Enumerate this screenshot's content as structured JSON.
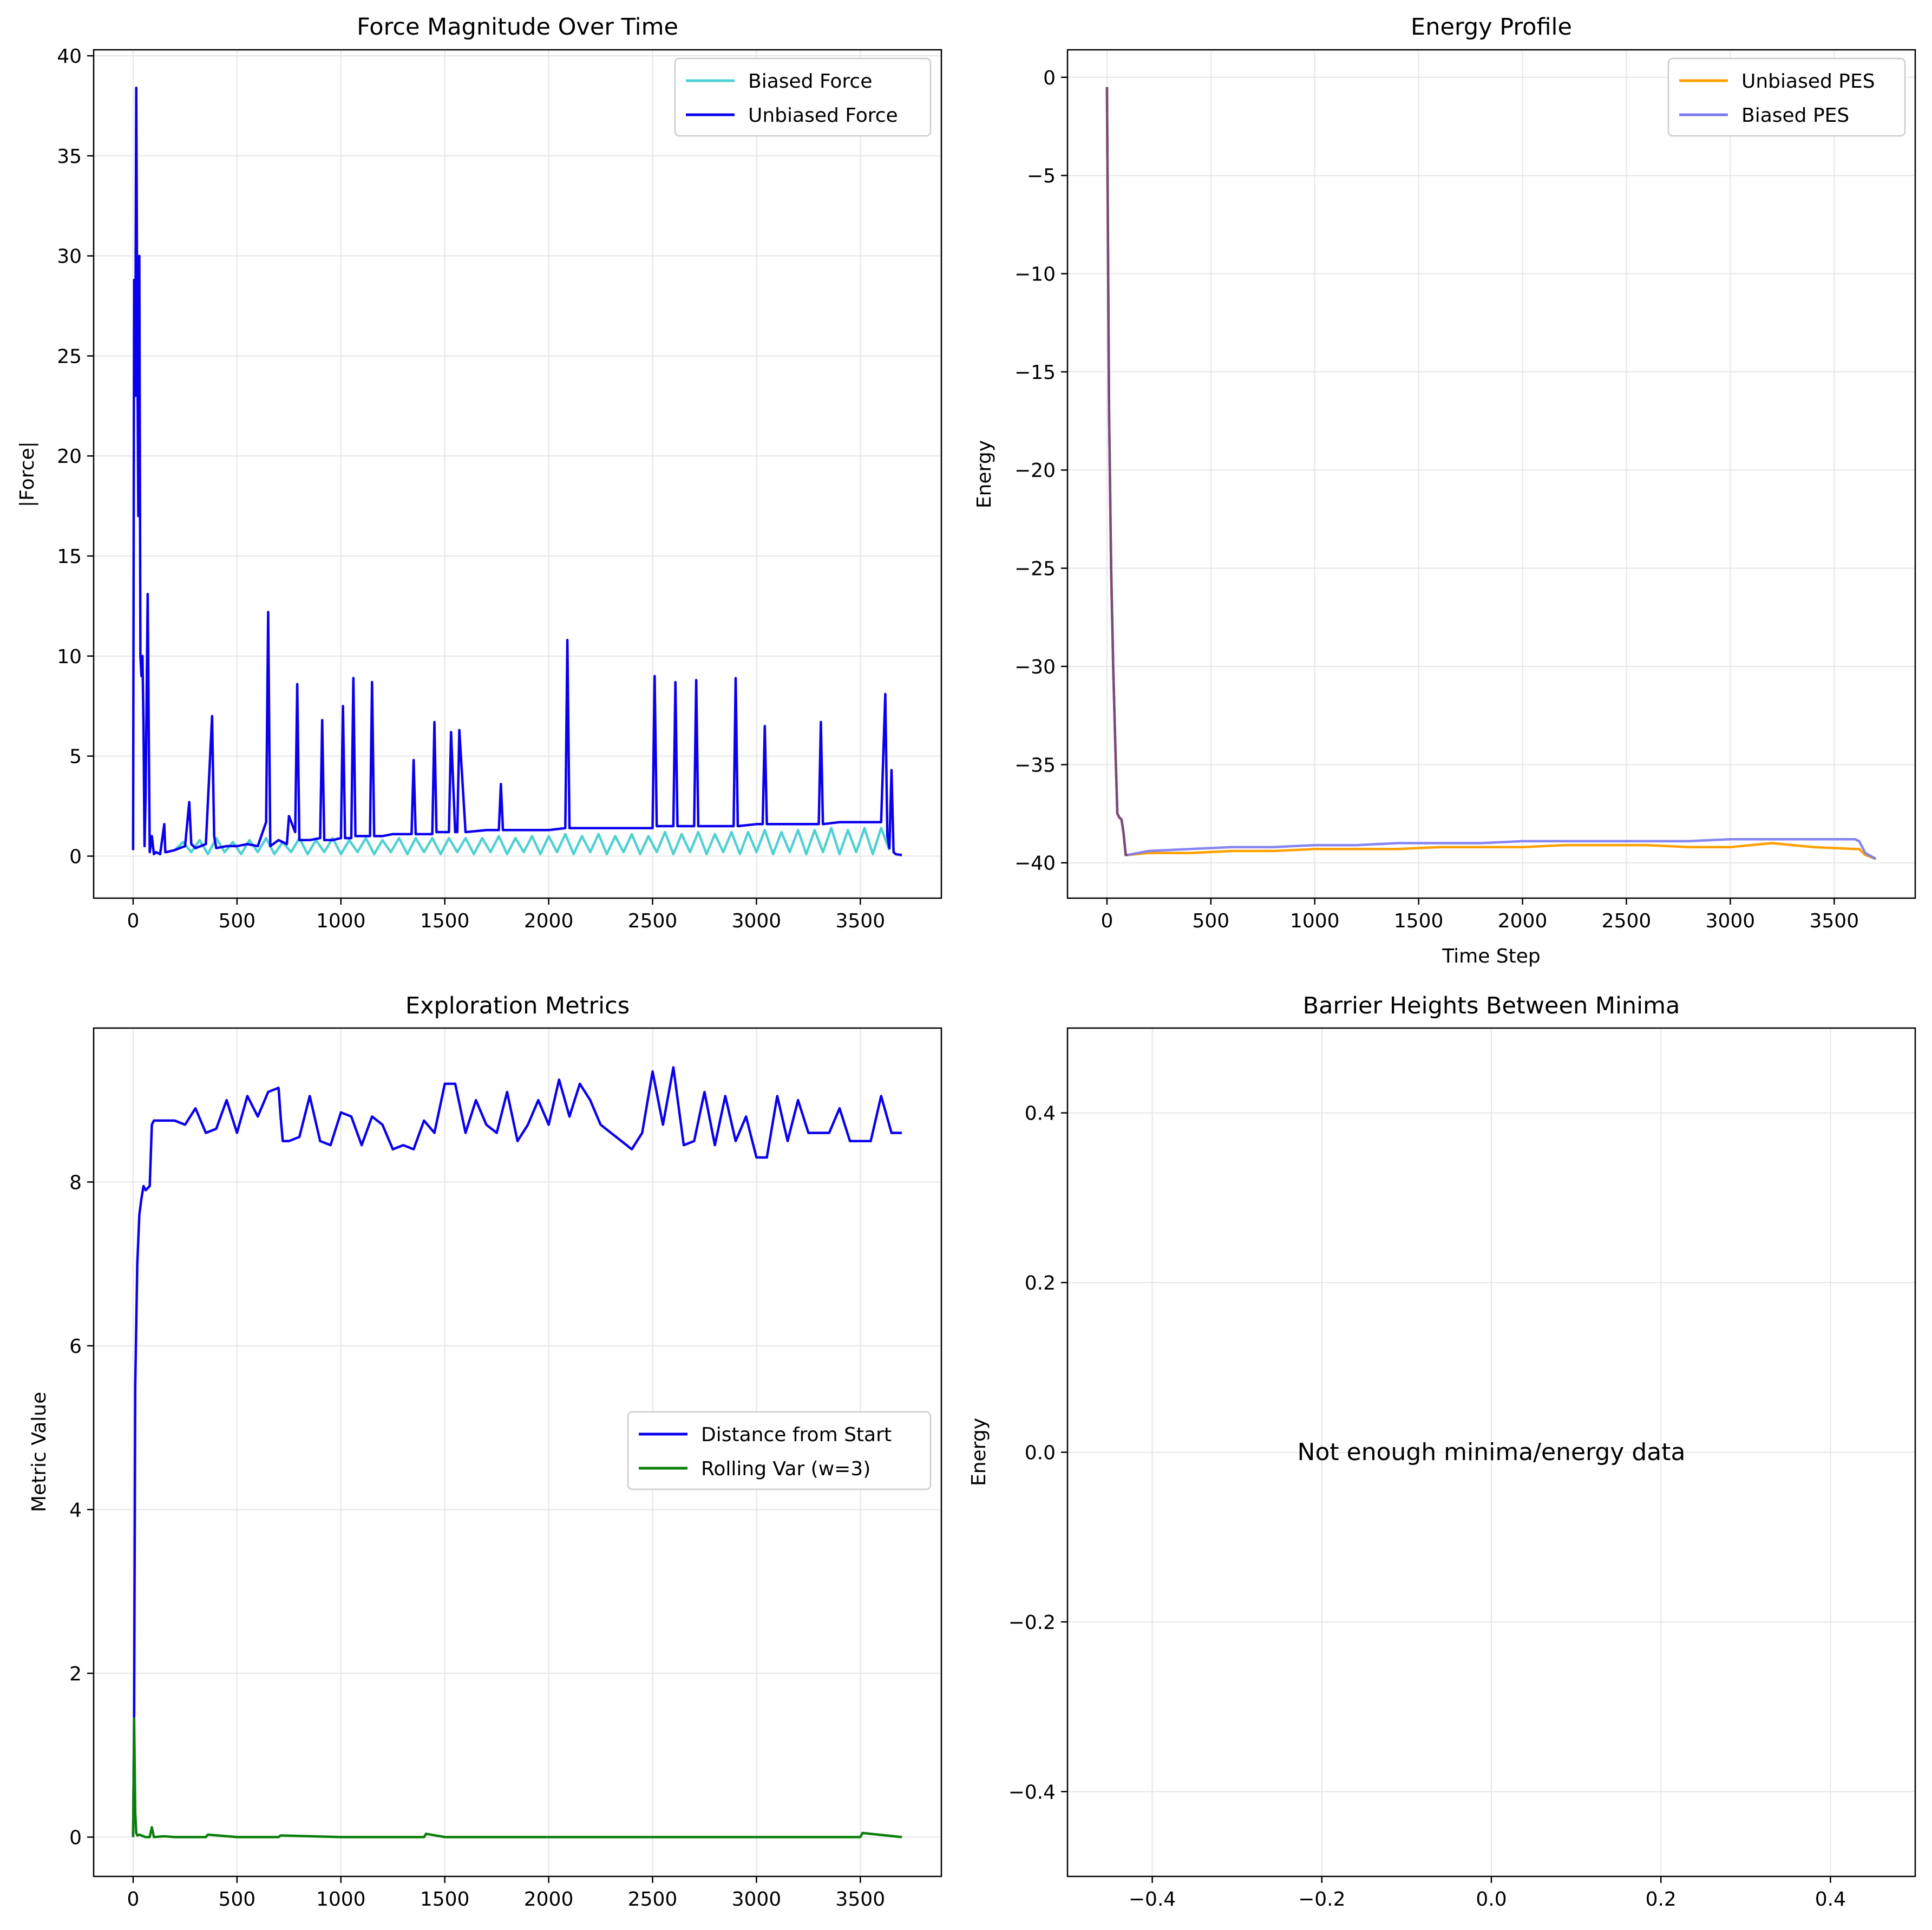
{
  "colors": {
    "biased_force": "#4fd0d3",
    "unbiased_force": "#0a00ee",
    "unbiased_pes": "#ffa000",
    "biased_pes": "#7a78f2",
    "pes_overlap": "#7b4a7a",
    "distance_from_start": "#0a00ee",
    "rolling_var": "#0a7f0a",
    "grid": "#e6e6e6"
  },
  "chart_data": [
    {
      "type": "line",
      "title": "Force Magnitude Over Time",
      "xlabel": "",
      "ylabel": "|Force|",
      "xlim": [
        -190,
        3890
      ],
      "ylim": [
        -2.1,
        40.3
      ],
      "xticks": [
        0,
        500,
        1000,
        1500,
        2000,
        2500,
        3000,
        3500
      ],
      "yticks": [
        0,
        5,
        10,
        15,
        20,
        25,
        30,
        35,
        40
      ],
      "grid": true,
      "legend_position": "top-right",
      "series": [
        {
          "name": "Biased Force",
          "color_key": "biased_force",
          "x": [
            200,
            240,
            280,
            320,
            360,
            400,
            440,
            480,
            520,
            560,
            600,
            640,
            680,
            720,
            760,
            800,
            840,
            880,
            920,
            960,
            1000,
            1040,
            1080,
            1120,
            1160,
            1200,
            1240,
            1280,
            1320,
            1360,
            1400,
            1440,
            1480,
            1520,
            1560,
            1600,
            1640,
            1680,
            1720,
            1760,
            1800,
            1840,
            1880,
            1920,
            1960,
            2000,
            2040,
            2080,
            2120,
            2160,
            2200,
            2240,
            2280,
            2320,
            2360,
            2400,
            2440,
            2480,
            2520,
            2560,
            2600,
            2640,
            2680,
            2720,
            2760,
            2800,
            2840,
            2880,
            2920,
            2960,
            3000,
            3040,
            3080,
            3120,
            3160,
            3200,
            3240,
            3280,
            3320,
            3360,
            3400,
            3440,
            3480,
            3520,
            3560,
            3600,
            3640
          ],
          "y": [
            0.3,
            0.7,
            0.2,
            0.8,
            0.1,
            0.9,
            0.2,
            0.7,
            0.1,
            0.8,
            0.2,
            0.9,
            0.1,
            0.7,
            0.2,
            0.9,
            0.1,
            0.8,
            0.2,
            0.9,
            0.1,
            0.8,
            0.2,
            0.9,
            0.1,
            0.8,
            0.2,
            0.9,
            0.1,
            0.9,
            0.2,
            0.9,
            0.1,
            0.9,
            0.2,
            0.9,
            0.1,
            0.9,
            0.2,
            1.0,
            0.1,
            0.9,
            0.2,
            1.0,
            0.1,
            1.0,
            0.2,
            1.1,
            0.1,
            1.0,
            0.2,
            1.1,
            0.1,
            1.0,
            0.2,
            1.1,
            0.1,
            1.0,
            0.2,
            1.2,
            0.1,
            1.1,
            0.2,
            1.2,
            0.1,
            1.1,
            0.2,
            1.2,
            0.1,
            1.2,
            0.2,
            1.3,
            0.1,
            1.2,
            0.2,
            1.3,
            0.1,
            1.3,
            0.2,
            1.4,
            0.1,
            1.3,
            0.2,
            1.4,
            0.1,
            1.4,
            0.3
          ]
        },
        {
          "name": "Unbiased Force",
          "color_key": "unbiased_force",
          "x": [
            0,
            5,
            10,
            15,
            20,
            25,
            30,
            35,
            40,
            45,
            50,
            55,
            60,
            70,
            80,
            90,
            100,
            110,
            130,
            150,
            155,
            160,
            200,
            250,
            270,
            280,
            300,
            350,
            380,
            390,
            400,
            450,
            500,
            550,
            600,
            640,
            650,
            660,
            700,
            740,
            750,
            780,
            790,
            800,
            850,
            900,
            910,
            920,
            960,
            1000,
            1010,
            1020,
            1050,
            1060,
            1070,
            1100,
            1140,
            1150,
            1160,
            1200,
            1250,
            1300,
            1340,
            1350,
            1360,
            1400,
            1440,
            1450,
            1460,
            1500,
            1520,
            1530,
            1550,
            1560,
            1570,
            1600,
            1700,
            1760,
            1770,
            1780,
            1800,
            1900,
            2000,
            2080,
            2090,
            2100,
            2200,
            2300,
            2400,
            2500,
            2510,
            2520,
            2560,
            2600,
            2610,
            2620,
            2700,
            2710,
            2720,
            2780,
            2800,
            2890,
            2900,
            2910,
            3000,
            3030,
            3040,
            3050,
            3100,
            3200,
            3300,
            3310,
            3320,
            3400,
            3500,
            3600,
            3620,
            3630,
            3640,
            3650,
            3660,
            3670,
            3700
          ],
          "y": [
            0.3,
            28.8,
            23.0,
            38.4,
            26.0,
            17.0,
            30.0,
            10.0,
            9.0,
            10.0,
            6.5,
            0.5,
            3.0,
            13.1,
            0.2,
            1.0,
            0.1,
            0.2,
            0.1,
            1.6,
            0.2,
            0.2,
            0.3,
            0.5,
            2.7,
            0.6,
            0.4,
            0.6,
            7.0,
            1.0,
            0.4,
            0.5,
            0.5,
            0.6,
            0.5,
            1.7,
            12.2,
            0.5,
            0.8,
            0.6,
            2.0,
            1.2,
            8.6,
            0.8,
            0.8,
            0.9,
            6.8,
            0.8,
            0.8,
            0.9,
            7.5,
            0.9,
            0.9,
            8.9,
            1.0,
            1.0,
            1.0,
            8.7,
            1.0,
            1.0,
            1.1,
            1.1,
            1.1,
            4.8,
            1.1,
            1.1,
            1.1,
            6.7,
            1.2,
            1.2,
            1.2,
            6.2,
            1.2,
            1.2,
            6.3,
            1.2,
            1.3,
            1.3,
            3.6,
            1.3,
            1.3,
            1.3,
            1.3,
            1.4,
            10.8,
            1.4,
            1.4,
            1.4,
            1.4,
            1.4,
            9.0,
            1.5,
            1.5,
            1.5,
            8.7,
            1.5,
            1.5,
            8.8,
            1.5,
            1.5,
            1.5,
            1.5,
            8.9,
            1.5,
            1.6,
            1.6,
            6.5,
            1.6,
            1.6,
            1.6,
            1.6,
            6.7,
            1.6,
            1.7,
            1.7,
            1.7,
            8.1,
            1.0,
            0.4,
            4.3,
            0.2,
            0.1,
            0.05
          ]
        }
      ]
    },
    {
      "type": "line",
      "title": "Energy Profile",
      "xlabel": "Time Step",
      "ylabel": "Energy",
      "xlim": [
        -190,
        3890
      ],
      "ylim": [
        -41.8,
        1.4
      ],
      "xticks": [
        0,
        500,
        1000,
        1500,
        2000,
        2500,
        3000,
        3500
      ],
      "yticks": [
        0,
        -5,
        -10,
        -15,
        -20,
        -25,
        -30,
        -35,
        -40
      ],
      "ytick_labels": [
        "0",
        "−5",
        "−10",
        "−15",
        "−20",
        "−25",
        "−30",
        "−35",
        "−40"
      ],
      "grid": true,
      "legend_position": "top-right",
      "series": [
        {
          "name": "Unbiased PES",
          "color_key": "unbiased_pes",
          "x": [
            0,
            10,
            20,
            30,
            40,
            50,
            60,
            70,
            80,
            90,
            100,
            200,
            400,
            600,
            800,
            1000,
            1200,
            1400,
            1600,
            1800,
            2000,
            2200,
            2400,
            2600,
            2800,
            3000,
            3200,
            3400,
            3600,
            3620,
            3650,
            3700
          ],
          "y": [
            -0.5,
            -17.0,
            -25.0,
            -30.0,
            -34.0,
            -37.5,
            -37.7,
            -37.8,
            -38.5,
            -39.6,
            -39.6,
            -39.5,
            -39.5,
            -39.4,
            -39.4,
            -39.3,
            -39.3,
            -39.3,
            -39.2,
            -39.2,
            -39.2,
            -39.1,
            -39.1,
            -39.1,
            -39.2,
            -39.2,
            -39.0,
            -39.2,
            -39.3,
            -39.3,
            -39.6,
            -39.8
          ]
        },
        {
          "name": "Biased PES",
          "color_key": "biased_pes",
          "x": [
            0,
            10,
            20,
            30,
            40,
            50,
            60,
            70,
            80,
            90,
            100,
            200,
            400,
            600,
            800,
            1000,
            1200,
            1400,
            1600,
            1800,
            2000,
            2200,
            2400,
            2600,
            2800,
            3000,
            3200,
            3400,
            3600,
            3620,
            3650,
            3700
          ],
          "y": [
            -0.5,
            -17.0,
            -25.0,
            -30.0,
            -34.0,
            -37.5,
            -37.7,
            -37.8,
            -38.5,
            -39.6,
            -39.6,
            -39.4,
            -39.3,
            -39.2,
            -39.2,
            -39.1,
            -39.1,
            -39.0,
            -39.0,
            -39.0,
            -38.9,
            -38.9,
            -38.9,
            -38.9,
            -38.9,
            -38.8,
            -38.8,
            -38.8,
            -38.8,
            -38.9,
            -39.5,
            -39.8
          ]
        }
      ]
    },
    {
      "type": "line",
      "title": "Exploration Metrics",
      "xlabel": "",
      "ylabel": "Metric Value",
      "xlim": [
        -190,
        3890
      ],
      "ylim": [
        -0.48,
        9.88
      ],
      "xticks": [
        0,
        500,
        1000,
        1500,
        2000,
        2500,
        3000,
        3500
      ],
      "yticks": [
        0,
        2,
        4,
        6,
        8
      ],
      "grid": true,
      "legend_position": "center-right",
      "series": [
        {
          "name": "Distance from Start",
          "color_key": "distance_from_start",
          "x": [
            0,
            5,
            10,
            20,
            30,
            40,
            50,
            60,
            80,
            90,
            100,
            200,
            250,
            300,
            350,
            400,
            450,
            500,
            550,
            600,
            650,
            700,
            710,
            720,
            750,
            800,
            850,
            900,
            950,
            1000,
            1050,
            1100,
            1150,
            1200,
            1250,
            1300,
            1350,
            1400,
            1450,
            1500,
            1550,
            1600,
            1650,
            1700,
            1750,
            1800,
            1850,
            1900,
            1950,
            2000,
            2050,
            2100,
            2150,
            2200,
            2250,
            2300,
            2350,
            2400,
            2450,
            2500,
            2550,
            2600,
            2650,
            2700,
            2750,
            2800,
            2850,
            2900,
            2950,
            3000,
            3050,
            3100,
            3150,
            3200,
            3250,
            3300,
            3350,
            3400,
            3450,
            3500,
            3550,
            3600,
            3650,
            3700
          ],
          "y": [
            0.0,
            1.5,
            5.5,
            7.0,
            7.6,
            7.8,
            7.95,
            7.9,
            7.95,
            8.7,
            8.75,
            8.75,
            8.7,
            8.9,
            8.6,
            8.65,
            9.0,
            8.6,
            9.05,
            8.8,
            9.1,
            9.15,
            8.8,
            8.5,
            8.5,
            8.55,
            9.05,
            8.5,
            8.45,
            8.85,
            8.8,
            8.45,
            8.8,
            8.7,
            8.4,
            8.45,
            8.4,
            8.75,
            8.6,
            9.2,
            9.2,
            8.6,
            9.0,
            8.7,
            8.6,
            9.1,
            8.5,
            8.7,
            9.0,
            8.7,
            9.25,
            8.8,
            9.2,
            9.0,
            8.7,
            8.6,
            8.5,
            8.4,
            8.6,
            9.35,
            8.7,
            9.4,
            8.45,
            8.5,
            9.1,
            8.45,
            9.05,
            8.5,
            8.8,
            8.3,
            8.3,
            9.05,
            8.5,
            9.0,
            8.6,
            8.6,
            8.6,
            8.9,
            8.5,
            8.5,
            8.5,
            9.05,
            8.6,
            8.6
          ]
        },
        {
          "name": "Rolling Var (w=3)",
          "color_key": "rolling_var",
          "x": [
            0,
            5,
            10,
            15,
            20,
            30,
            60,
            80,
            90,
            100,
            150,
            200,
            350,
            360,
            500,
            700,
            710,
            1000,
            1400,
            1410,
            1500,
            2000,
            2500,
            3000,
            3500,
            3510,
            3700
          ],
          "y": [
            0.0,
            1.45,
            0.3,
            0.05,
            0.02,
            0.03,
            0.0,
            0.0,
            0.12,
            0.0,
            0.01,
            0.0,
            0.0,
            0.03,
            0.0,
            0.0,
            0.02,
            0.0,
            0.0,
            0.04,
            0.0,
            0.0,
            0.0,
            0.0,
            0.0,
            0.05,
            0.0
          ]
        }
      ]
    },
    {
      "type": "line",
      "title": "Barrier Heights Between Minima",
      "xlabel": "",
      "ylabel": "Energy",
      "xlim": [
        -0.5,
        0.5
      ],
      "ylim": [
        -0.5,
        0.5
      ],
      "xticks": [
        -0.4,
        -0.2,
        0.0,
        0.2,
        0.4
      ],
      "xtick_labels": [
        "−0.4",
        "−0.2",
        "0.0",
        "0.2",
        "0.4"
      ],
      "yticks": [
        0.4,
        0.2,
        0.0,
        -0.2,
        -0.4
      ],
      "ytick_labels": [
        "0.4",
        "0.2",
        "0.0",
        "−0.2",
        "−0.4"
      ],
      "grid": true,
      "annotation": "Not enough minima/energy data",
      "series": []
    }
  ]
}
